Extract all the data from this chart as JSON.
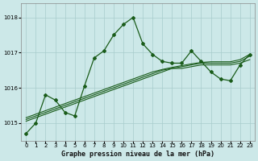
{
  "title": "Graphe pression niveau de la mer (hPa)",
  "background_color": "#cce8e8",
  "grid_color": "#a8cccc",
  "line_color": "#1a5c1a",
  "xlim": [
    -0.5,
    23.5
  ],
  "ylim": [
    1014.5,
    1018.4
  ],
  "yticks": [
    1015,
    1016,
    1017,
    1018
  ],
  "xticks": [
    0,
    1,
    2,
    3,
    4,
    5,
    6,
    7,
    8,
    9,
    10,
    11,
    12,
    13,
    14,
    15,
    16,
    17,
    18,
    19,
    20,
    21,
    22,
    23
  ],
  "main_line": [
    1014.7,
    1015.0,
    1015.8,
    1015.65,
    1015.3,
    1015.2,
    1016.05,
    1016.85,
    1017.05,
    1017.5,
    1017.8,
    1018.0,
    1017.25,
    1016.95,
    1016.75,
    1016.7,
    1016.7,
    1017.05,
    1016.75,
    1016.45,
    1016.25,
    1016.2,
    1016.65,
    1016.95
  ],
  "smooth_lines": [
    [
      1015.05,
      1015.15,
      1015.25,
      1015.35,
      1015.45,
      1015.55,
      1015.65,
      1015.75,
      1015.85,
      1015.95,
      1016.05,
      1016.15,
      1016.25,
      1016.35,
      1016.45,
      1016.55,
      1016.55,
      1016.6,
      1016.65,
      1016.65,
      1016.65,
      1016.65,
      1016.7,
      1016.8
    ],
    [
      1015.1,
      1015.2,
      1015.3,
      1015.4,
      1015.5,
      1015.6,
      1015.7,
      1015.8,
      1015.9,
      1016.0,
      1016.1,
      1016.2,
      1016.3,
      1016.4,
      1016.5,
      1016.55,
      1016.6,
      1016.65,
      1016.7,
      1016.7,
      1016.7,
      1016.7,
      1016.75,
      1016.9
    ],
    [
      1015.15,
      1015.25,
      1015.35,
      1015.45,
      1015.55,
      1015.65,
      1015.75,
      1015.85,
      1015.95,
      1016.05,
      1016.15,
      1016.25,
      1016.35,
      1016.45,
      1016.52,
      1016.58,
      1016.63,
      1016.68,
      1016.72,
      1016.74,
      1016.74,
      1016.74,
      1016.8,
      1016.95
    ]
  ]
}
